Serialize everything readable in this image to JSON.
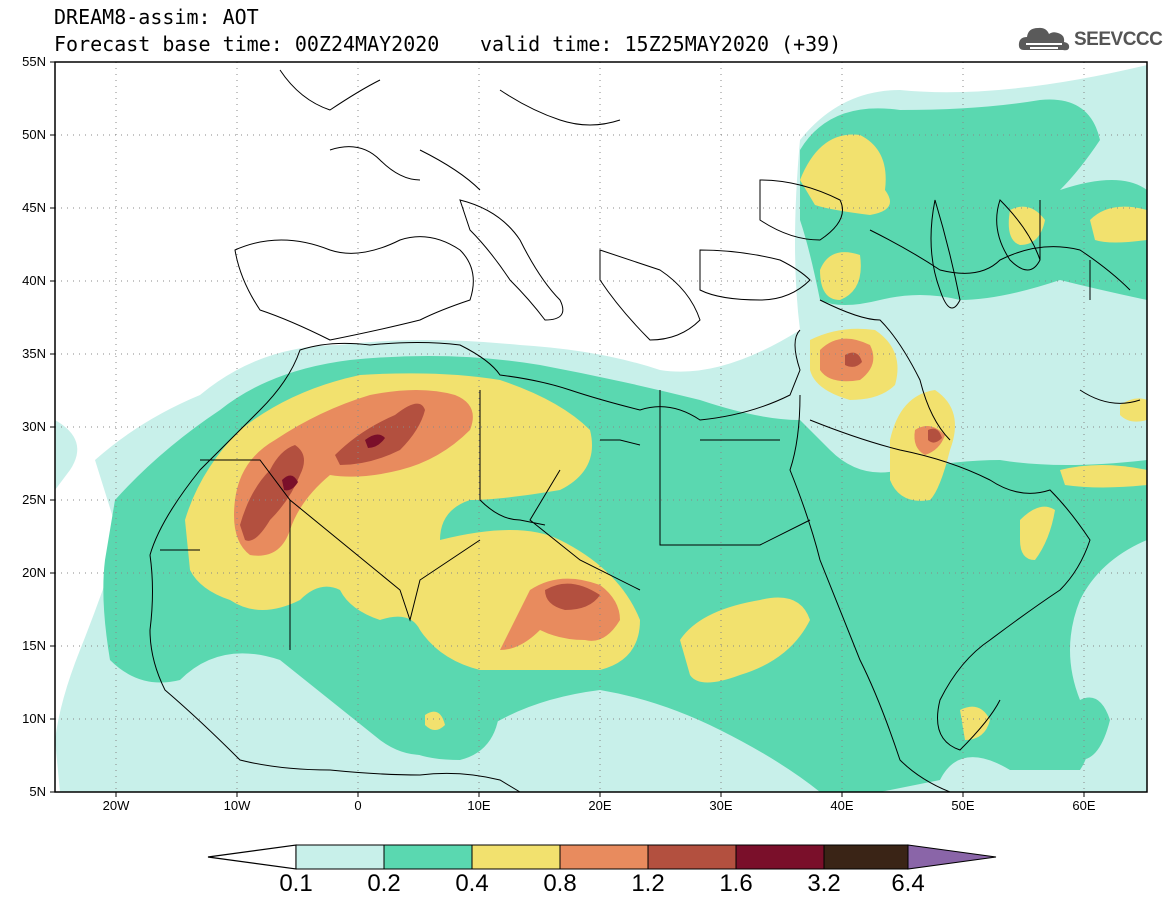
{
  "title": {
    "line1": "DREAM8-assim: AOT",
    "line2": "Forecast base time: 00Z24MAY2020",
    "valid": "valid time: 15Z25MAY2020 (+39)"
  },
  "brand": {
    "name": "SEEVCCC",
    "icon": "cloud-logo-icon"
  },
  "map": {
    "lon_range": [
      -25,
      65
    ],
    "lat_range": [
      5,
      55
    ],
    "lat_ticks": [
      "55N",
      "50N",
      "45N",
      "40N",
      "35N",
      "30N",
      "25N",
      "20N",
      "15N",
      "10N",
      "5N"
    ],
    "lon_ticks": [
      "20W",
      "10W",
      "0",
      "10E",
      "20E",
      "30E",
      "40E",
      "50E",
      "60E"
    ],
    "gridlines": "dotted"
  },
  "colorbar": {
    "labels": [
      "0.1",
      "0.2",
      "0.4",
      "0.8",
      "1.2",
      "1.6",
      "3.2",
      "6.4"
    ],
    "colors": [
      "#c8f0ea",
      "#5ad8b0",
      "#f2e16e",
      "#e88b5e",
      "#b3503f",
      "#7a0f2a",
      "#3a2416",
      "#8a65a8"
    ]
  }
}
